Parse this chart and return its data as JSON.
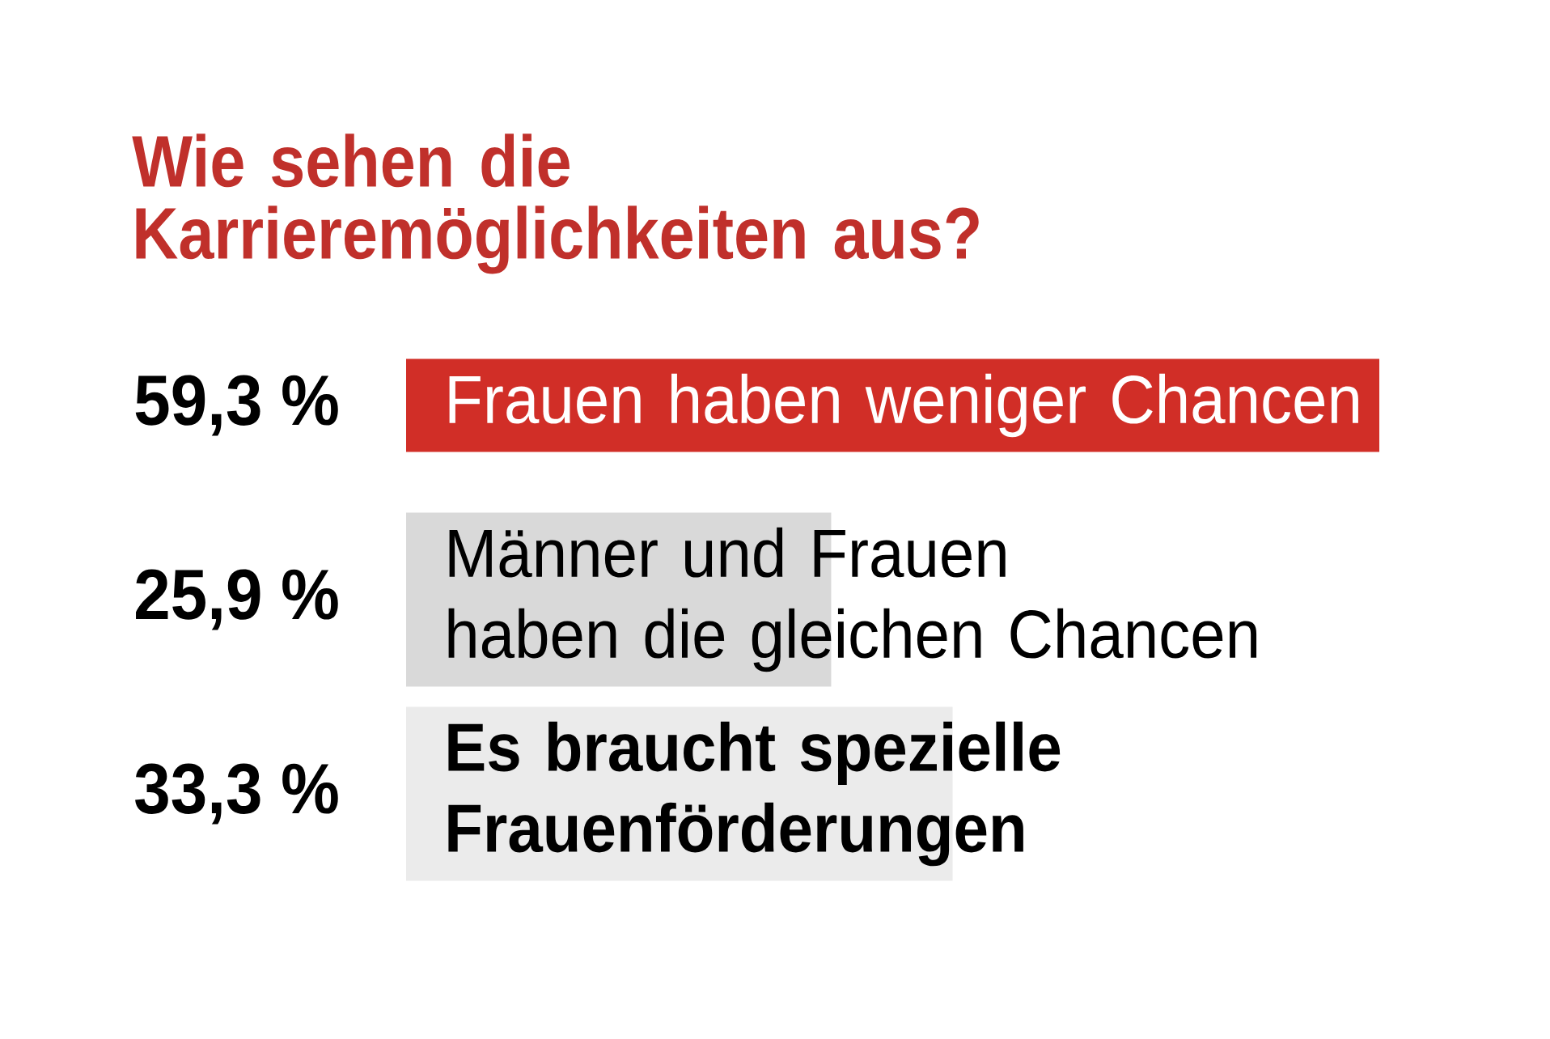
{
  "chart_data": {
    "type": "bar",
    "orientation": "horizontal",
    "title": "Wie sehen die Karrieremöglichkeiten aus?",
    "categories": [
      "Frauen haben weniger Chancen",
      "Männer und Frauen\nhaben die gleichen Chancen",
      "Es braucht spezielle\nFrauenförderungen"
    ],
    "values": [
      59.3,
      25.9,
      33.3
    ],
    "colors": [
      "#d12e27",
      "#d9d9d9",
      "#ebebeb"
    ],
    "value_labels": [
      "59,3 %",
      "25,9 %",
      "33,3 %"
    ]
  }
}
